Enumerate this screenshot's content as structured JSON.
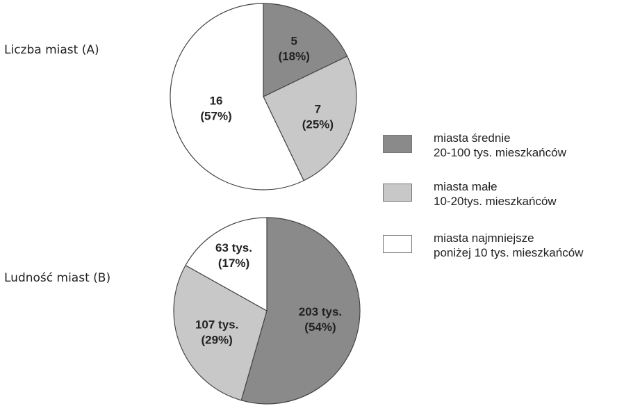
{
  "chart_data": [
    {
      "type": "pie",
      "title": "Liczba miast (A)",
      "slices": [
        {
          "category": "miasta średnie",
          "value": 5,
          "value_label": "5",
          "percent_label": "(18%)",
          "color": "#8a8a8a"
        },
        {
          "category": "miasta małe",
          "value": 7,
          "value_label": "7",
          "percent_label": "(25%)",
          "color": "#c8c8c8"
        },
        {
          "category": "miasta najmniejsze",
          "value": 16,
          "value_label": "16",
          "percent_label": "(57%)",
          "color": "#ffffff"
        }
      ]
    },
    {
      "type": "pie",
      "title": "Ludność miast (B)",
      "slices": [
        {
          "category": "miasta średnie",
          "value": 203,
          "value_label": "203 tys.",
          "percent_label": "(54%)",
          "color": "#8a8a8a"
        },
        {
          "category": "miasta małe",
          "value": 107,
          "value_label": "107 tys.",
          "percent_label": "(29%)",
          "color": "#c8c8c8"
        },
        {
          "category": "miasta najmniejsze",
          "value": 63,
          "value_label": "63 tys.",
          "percent_label": "(17%)",
          "color": "#ffffff"
        }
      ]
    }
  ],
  "legend": {
    "position": "right",
    "items": [
      {
        "line1": "miasta średnie",
        "line2": "20-100 tys. mieszkańców",
        "color": "#8a8a8a"
      },
      {
        "line1": "miasta małe",
        "line2": "10-20tys. mieszkańców",
        "color": "#c8c8c8"
      },
      {
        "line1": "miasta najmniejsze",
        "line2": "poniżej 10 tys. mieszkańców",
        "color": "#ffffff"
      }
    ]
  },
  "colors": {
    "slice_stroke": "#444444",
    "text": "#222222"
  }
}
